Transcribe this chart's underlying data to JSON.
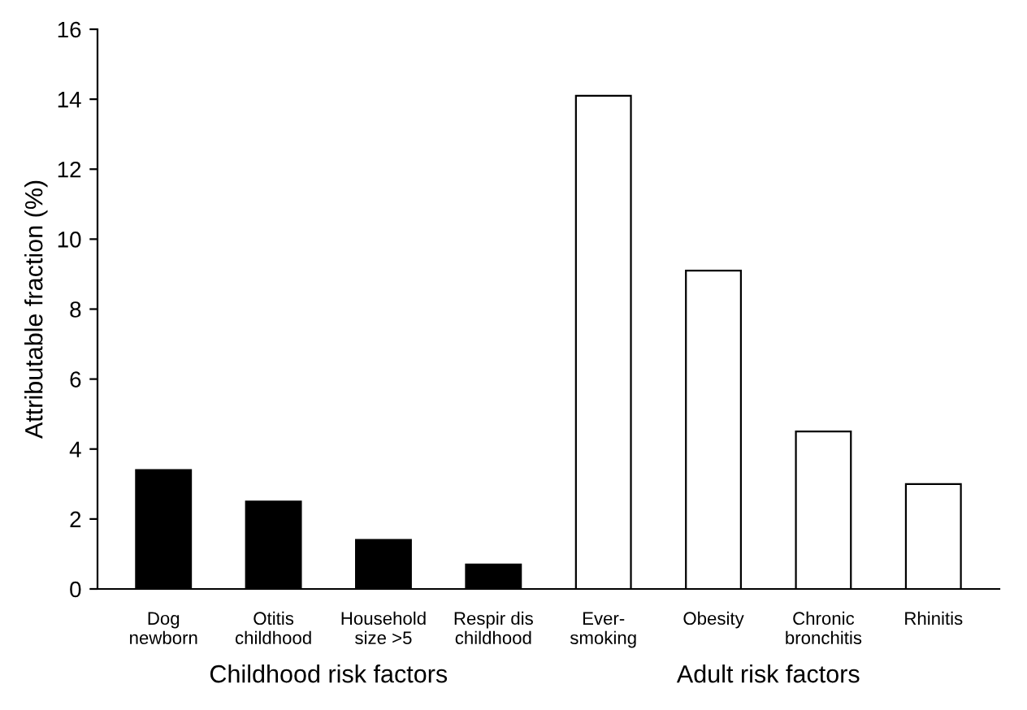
{
  "chart_data": {
    "type": "bar",
    "ylabel": "Attributable fraction (%)",
    "categories": [
      "Dog\nnewborn",
      "Otitis\nchildhood",
      "Household\nsize >5",
      "Respir dis\nchildhood",
      "Ever-\nsmoking",
      "Obesity",
      "Chronic\nbronchitis",
      "Rhinitis"
    ],
    "values": [
      3.4,
      2.5,
      1.4,
      0.7,
      14.1,
      9.1,
      4.5,
      3.0
    ],
    "colors": [
      "#000000",
      "#000000",
      "#000000",
      "#000000",
      "#ffffff",
      "#ffffff",
      "#ffffff",
      "#ffffff"
    ],
    "ylim": [
      0,
      16
    ],
    "yticks": [
      0,
      2,
      4,
      6,
      8,
      10,
      12,
      14,
      16
    ],
    "grid": false,
    "legend": false,
    "annotations": [
      "Childhood risk factors",
      "Adult risk factors"
    ]
  }
}
